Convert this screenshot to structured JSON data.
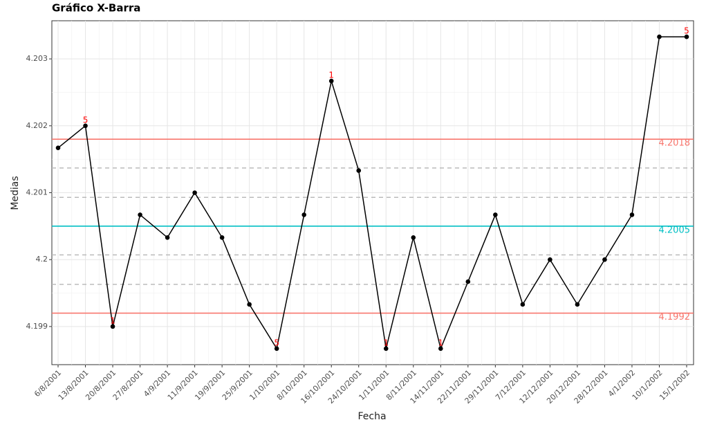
{
  "chart_data": {
    "type": "line",
    "title": "Gráfico X-Barra",
    "x_label": "Fecha",
    "y_label": "Medias",
    "categories": [
      "6/8/2001",
      "13/8/2001",
      "20/8/2001",
      "27/8/2001",
      "4/9/2001",
      "11/9/2001",
      "19/9/2001",
      "25/9/2001",
      "1/10/2001",
      "8/10/2001",
      "16/10/2001",
      "24/10/2001",
      "1/11/2001",
      "8/11/2001",
      "14/11/2001",
      "22/11/2001",
      "29/11/2001",
      "7/12/2001",
      "12/12/2001",
      "20/12/2001",
      "28/12/2001",
      "4/1/2002",
      "10/1/2002",
      "15/1/2002"
    ],
    "series": [
      {
        "color": "#000000",
        "values": [
          4.20167,
          4.202,
          4.199,
          4.20067,
          4.20033,
          4.201,
          4.20033,
          4.19933,
          4.19867,
          4.20067,
          4.20267,
          4.20133,
          4.19867,
          4.20033,
          4.19867,
          4.19967,
          4.20067,
          4.19933,
          4.2,
          4.19933,
          4.2,
          4.20067,
          4.20333,
          4.20333
        ]
      }
    ],
    "limits": [
      {
        "value": 4.2018,
        "color": "#f8766d"
      },
      {
        "value": 4.2005,
        "color": "#00bfc4"
      },
      {
        "value": 4.1992,
        "color": "#f8766d"
      }
    ],
    "sigma_lines": [
      4.20137,
      4.20093,
      4.20007,
      4.19963
    ],
    "annotations": [
      {
        "index": 1,
        "text": "5"
      },
      {
        "index": 2,
        "text": "1"
      },
      {
        "index": 8,
        "text": "5"
      },
      {
        "index": 10,
        "text": "1"
      },
      {
        "index": 12,
        "text": "1"
      },
      {
        "index": 14,
        "text": "1"
      },
      {
        "index": 23,
        "text": "5"
      }
    ],
    "annotation_color": "#ff0000",
    "ylim": [
      4.19843,
      4.20357
    ],
    "yticks": [
      4.199,
      4.2,
      4.201,
      4.202,
      4.203
    ],
    "grid": true
  }
}
